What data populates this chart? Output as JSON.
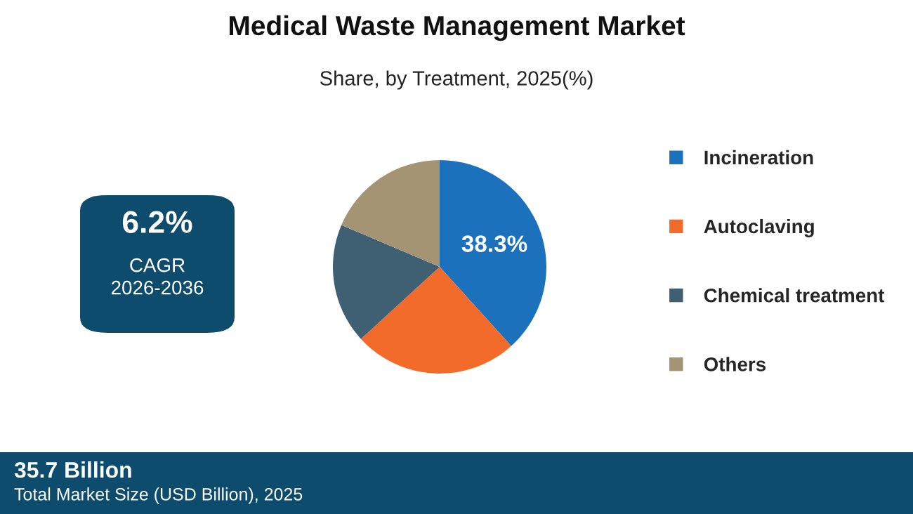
{
  "chart_data": {
    "type": "pie",
    "title": "Medical Waste Management Market",
    "subtitle": "Share, by Treatment, 2025(%)",
    "categories": [
      "Incineration",
      "Autoclaving",
      "Chemical treatment",
      "Others"
    ],
    "values": [
      38.3,
      24.9,
      18.2,
      18.6
    ],
    "colors": [
      "#1c71bd",
      "#f26b2b",
      "#3f5f72",
      "#a49474"
    ],
    "value_labels": [
      "38.3%",
      null,
      null,
      null
    ],
    "legend": "right",
    "annotations": [
      "6.2%",
      "CAGR",
      "2026-2036",
      "35.7 Billion",
      "Total Market Size (USD Billion), 2025"
    ]
  }
}
